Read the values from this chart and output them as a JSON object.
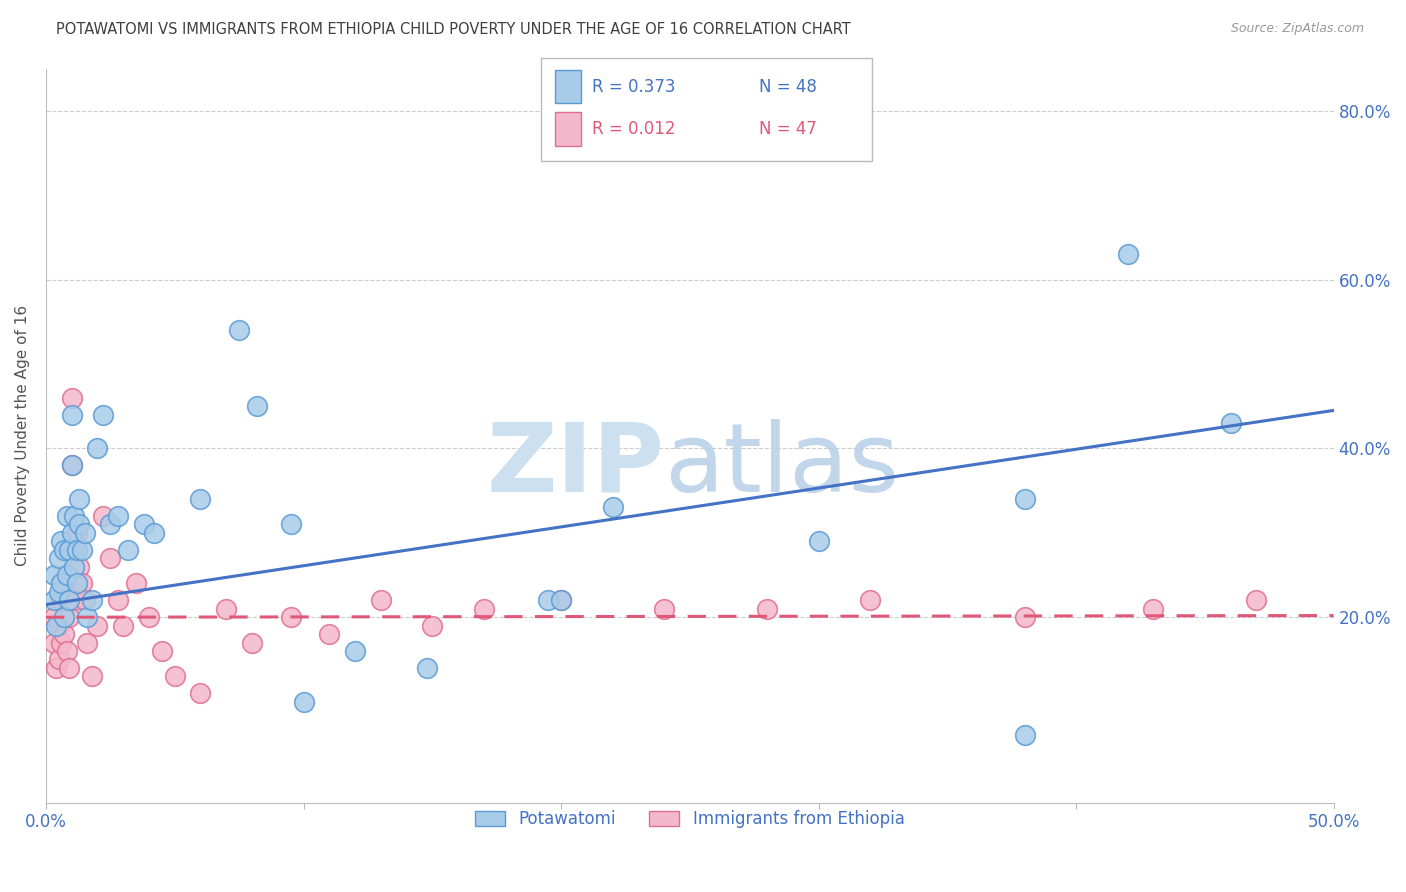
{
  "title": "POTAWATOMI VS IMMIGRANTS FROM ETHIOPIA CHILD POVERTY UNDER THE AGE OF 16 CORRELATION CHART",
  "source": "Source: ZipAtlas.com",
  "ylabel": "Child Poverty Under the Age of 16",
  "x_min": 0.0,
  "x_max": 0.5,
  "y_min": -0.02,
  "y_max": 0.85,
  "yticks": [
    0.2,
    0.4,
    0.6,
    0.8
  ],
  "ytick_labels": [
    "20.0%",
    "40.0%",
    "60.0%",
    "80.0%"
  ],
  "xticks": [
    0.0,
    0.1,
    0.2,
    0.3,
    0.4,
    0.5
  ],
  "xtick_labels": [
    "0.0%",
    "",
    "",
    "",
    "",
    "50.0%"
  ],
  "legend_r1": "R = 0.373",
  "legend_n1": "N = 48",
  "legend_r2": "R = 0.012",
  "legend_n2": "N = 47",
  "blue_color": "#a8cce8",
  "blue_edge_color": "#5b9bd5",
  "blue_line_color": "#4472c4",
  "pink_color": "#f4b8cc",
  "pink_edge_color": "#e07090",
  "pink_line_color": "#e05878",
  "grid_color": "#cccccc",
  "title_color": "#404040",
  "tick_label_color": "#4472c4",
  "potawatomi_x": [
    0.003,
    0.003,
    0.004,
    0.005,
    0.005,
    0.006,
    0.006,
    0.007,
    0.007,
    0.008,
    0.008,
    0.009,
    0.009,
    0.01,
    0.01,
    0.01,
    0.011,
    0.011,
    0.012,
    0.012,
    0.013,
    0.013,
    0.014,
    0.015,
    0.016,
    0.018,
    0.02,
    0.022,
    0.025,
    0.028,
    0.032,
    0.038,
    0.042,
    0.06,
    0.075,
    0.082,
    0.095,
    0.12,
    0.148,
    0.195,
    0.22,
    0.3,
    0.38,
    0.42,
    0.46,
    0.38,
    0.2,
    0.1
  ],
  "potawatomi_y": [
    0.25,
    0.22,
    0.19,
    0.27,
    0.23,
    0.29,
    0.24,
    0.28,
    0.2,
    0.32,
    0.25,
    0.28,
    0.22,
    0.44,
    0.38,
    0.3,
    0.26,
    0.32,
    0.28,
    0.24,
    0.34,
    0.31,
    0.28,
    0.3,
    0.2,
    0.22,
    0.4,
    0.44,
    0.31,
    0.32,
    0.28,
    0.31,
    0.3,
    0.34,
    0.54,
    0.45,
    0.31,
    0.16,
    0.14,
    0.22,
    0.33,
    0.29,
    0.34,
    0.63,
    0.43,
    0.06,
    0.22,
    0.1
  ],
  "ethiopia_x": [
    0.003,
    0.003,
    0.004,
    0.005,
    0.005,
    0.006,
    0.006,
    0.007,
    0.007,
    0.008,
    0.008,
    0.009,
    0.009,
    0.01,
    0.01,
    0.011,
    0.011,
    0.012,
    0.013,
    0.014,
    0.015,
    0.016,
    0.018,
    0.02,
    0.022,
    0.025,
    0.028,
    0.03,
    0.035,
    0.04,
    0.045,
    0.05,
    0.06,
    0.07,
    0.08,
    0.095,
    0.11,
    0.13,
    0.15,
    0.17,
    0.2,
    0.24,
    0.28,
    0.32,
    0.38,
    0.43,
    0.47
  ],
  "ethiopia_y": [
    0.2,
    0.17,
    0.14,
    0.19,
    0.15,
    0.22,
    0.17,
    0.23,
    0.18,
    0.22,
    0.16,
    0.2,
    0.14,
    0.46,
    0.38,
    0.28,
    0.22,
    0.3,
    0.26,
    0.24,
    0.22,
    0.17,
    0.13,
    0.19,
    0.32,
    0.27,
    0.22,
    0.19,
    0.24,
    0.2,
    0.16,
    0.13,
    0.11,
    0.21,
    0.17,
    0.2,
    0.18,
    0.22,
    0.19,
    0.21,
    0.22,
    0.21,
    0.21,
    0.22,
    0.2,
    0.21,
    0.22
  ],
  "blue_trend_x0": 0.0,
  "blue_trend_y0": 0.215,
  "blue_trend_x1": 0.5,
  "blue_trend_y1": 0.445,
  "pink_trend_x0": 0.0,
  "pink_trend_y0": 0.2,
  "pink_trend_x1": 0.5,
  "pink_trend_y1": 0.202
}
